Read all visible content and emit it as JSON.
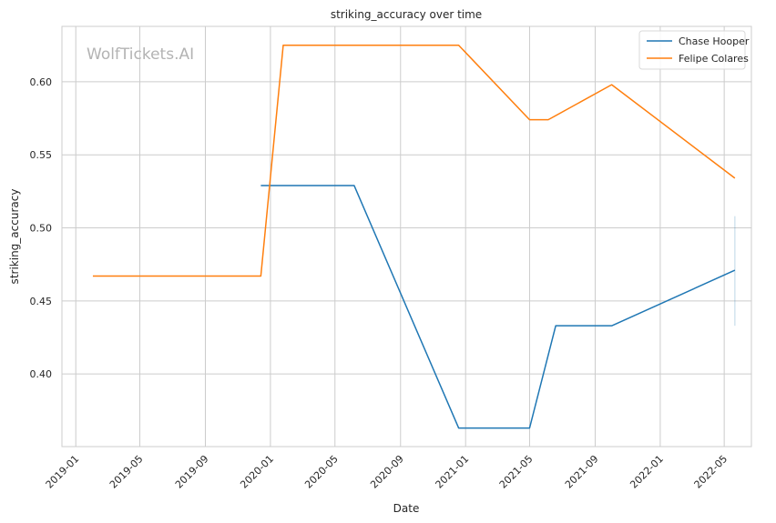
{
  "chart_data": {
    "type": "line",
    "title": "striking_accuracy over time",
    "xlabel": "Date",
    "ylabel": "striking_accuracy",
    "watermark": "WolfTickets.AI",
    "x_ticks": [
      "2019-01",
      "2019-05",
      "2019-09",
      "2020-01",
      "2020-05",
      "2020-09",
      "2021-01",
      "2021-05",
      "2021-09",
      "2022-01",
      "2022-05"
    ],
    "y_ticks": [
      "0.40",
      "0.45",
      "0.50",
      "0.55",
      "0.60"
    ],
    "x_range": [
      "2018-12-06",
      "2022-06-21"
    ],
    "ylim": [
      0.3503,
      0.6379
    ],
    "grid": true,
    "legend_position": "top-right",
    "series": [
      {
        "name": "Chase Hooper",
        "color": "#1f77b4",
        "points": [
          {
            "x": "2019-12-14",
            "y": 0.529
          },
          {
            "x": "2020-06-06",
            "y": 0.529
          },
          {
            "x": "2020-12-19",
            "y": 0.363
          },
          {
            "x": "2021-05-01",
            "y": 0.363
          },
          {
            "x": "2021-06-19",
            "y": 0.433
          },
          {
            "x": "2021-10-02",
            "y": 0.433
          },
          {
            "x": "2022-05-21",
            "y": 0.471
          }
        ],
        "band": {
          "x": "2022-05-21",
          "low": 0.433,
          "high": 0.508
        }
      },
      {
        "name": "Felipe Colares",
        "color": "#ff7f0e",
        "points": [
          {
            "x": "2019-02-02",
            "y": 0.467
          },
          {
            "x": "2019-12-14",
            "y": 0.467
          },
          {
            "x": "2020-01-25",
            "y": 0.625
          },
          {
            "x": "2020-12-19",
            "y": 0.625
          },
          {
            "x": "2021-05-01",
            "y": 0.574
          },
          {
            "x": "2021-06-05",
            "y": 0.574
          },
          {
            "x": "2021-10-02",
            "y": 0.598
          },
          {
            "x": "2022-05-21",
            "y": 0.534
          }
        ]
      }
    ]
  }
}
